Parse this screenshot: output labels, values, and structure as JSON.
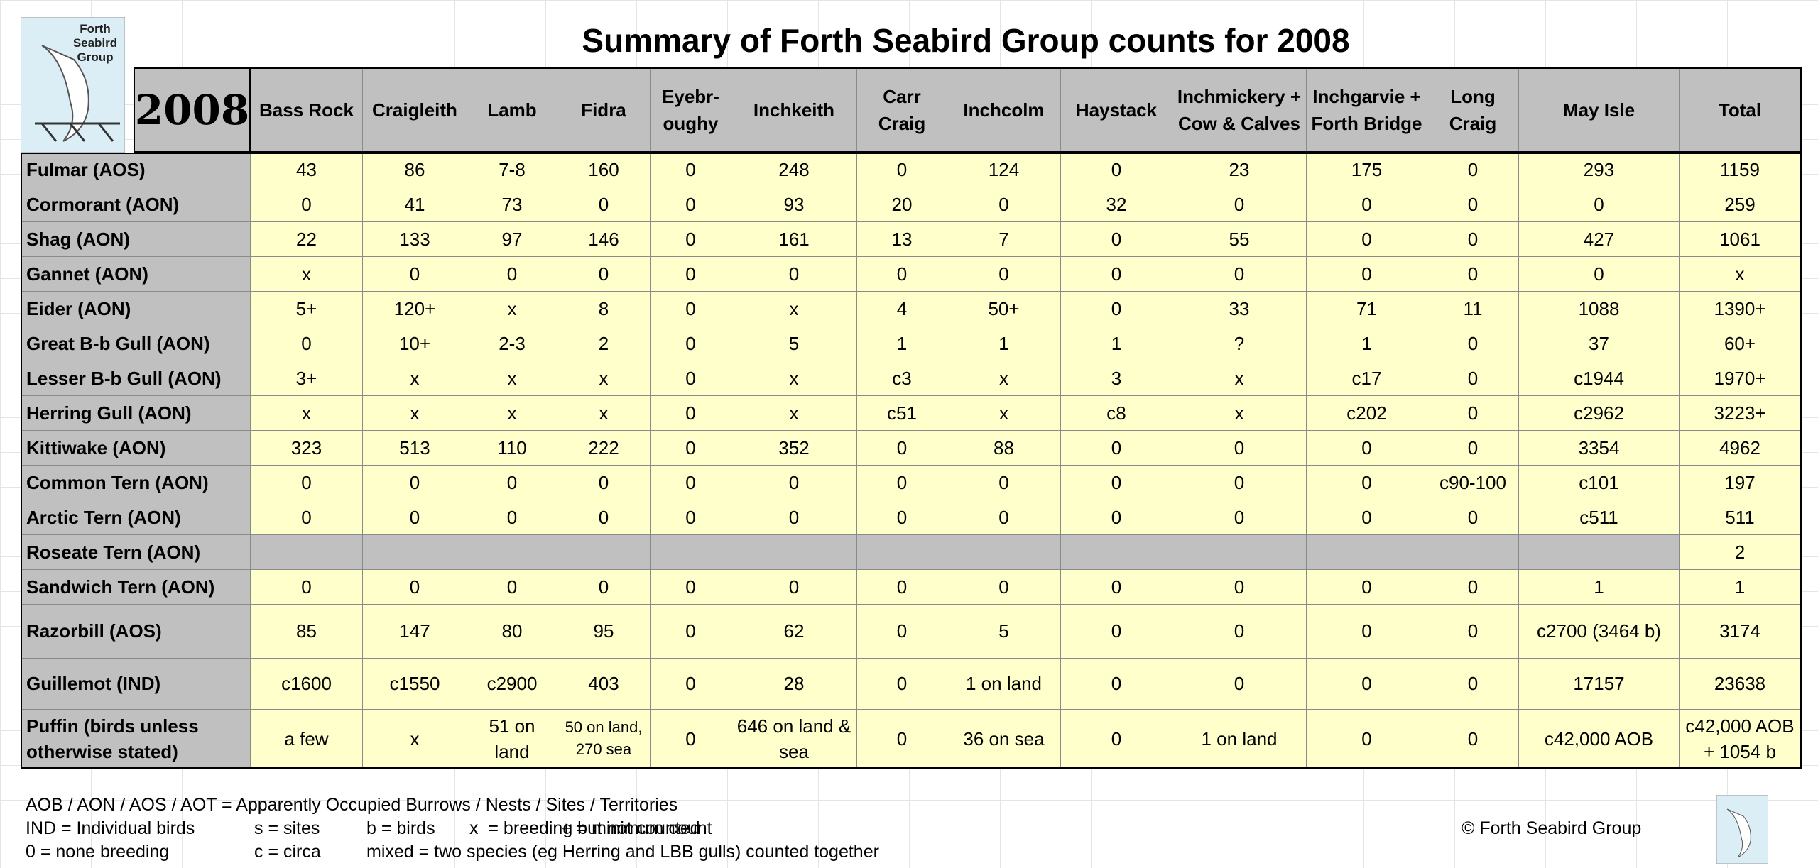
{
  "title": "Summary of Forth Seabird Group counts for 2008",
  "logo": {
    "lines": [
      "Forth",
      "Seabird",
      "Group"
    ]
  },
  "table": {
    "year": "2008",
    "columns": [
      "Bass Rock",
      "Craigleith",
      "Lamb",
      "Fidra",
      "Eyebr-oughy",
      "Inchkeith",
      "Carr Craig",
      "Inchcolm",
      "Haystack",
      "Inchmickery + Cow & Calves",
      "Inchgarvie + Forth Bridge",
      "Long Craig",
      "May Isle",
      "Total"
    ],
    "rows": [
      {
        "label": "Fulmar (AOS)",
        "cells": [
          "43",
          "86",
          "7-8",
          "160",
          "0",
          "248",
          "0",
          "124",
          "0",
          "23",
          "175",
          "0",
          "293",
          "1159"
        ]
      },
      {
        "label": "Cormorant (AON)",
        "cells": [
          "0",
          "41",
          "73",
          "0",
          "0",
          "93",
          "20",
          "0",
          "32",
          "0",
          "0",
          "0",
          "0",
          "259"
        ]
      },
      {
        "label": "Shag (AON)",
        "cells": [
          "22",
          "133",
          "97",
          "146",
          "0",
          "161",
          "13",
          "7",
          "0",
          "55",
          "0",
          "0",
          "427",
          "1061"
        ]
      },
      {
        "label": "Gannet (AON)",
        "cells": [
          "x",
          "0",
          "0",
          "0",
          "0",
          "0",
          "0",
          "0",
          "0",
          "0",
          "0",
          "0",
          "0",
          "x"
        ]
      },
      {
        "label": "Eider (AON)",
        "cells": [
          "5+",
          "120+",
          "x",
          "8",
          "0",
          "x",
          "4",
          "50+",
          "0",
          "33",
          "71",
          "11",
          "1088",
          "1390+"
        ]
      },
      {
        "label": "Great B-b Gull (AON)",
        "cells": [
          "0",
          "10+",
          "2-3",
          "2",
          "0",
          "5",
          "1",
          "1",
          "1",
          "?",
          "1",
          "0",
          "37",
          "60+"
        ]
      },
      {
        "label": "Lesser B-b Gull (AON)",
        "cells": [
          "3+",
          "x",
          "x",
          "x",
          "0",
          "x",
          "c3",
          "x",
          "3",
          "x",
          "c17",
          "0",
          "c1944",
          "1970+"
        ]
      },
      {
        "label": "Herring Gull (AON)",
        "cells": [
          "x",
          "x",
          "x",
          "x",
          "0",
          "x",
          "c51",
          "x",
          "c8",
          "x",
          "c202",
          "0",
          "c2962",
          "3223+"
        ]
      },
      {
        "label": "Kittiwake (AON)",
        "cells": [
          "323",
          "513",
          "110",
          "222",
          "0",
          "352",
          "0",
          "88",
          "0",
          "0",
          "0",
          "0",
          "3354",
          "4962"
        ]
      },
      {
        "label": "Common Tern (AON)",
        "cells": [
          "0",
          "0",
          "0",
          "0",
          "0",
          "0",
          "0",
          "0",
          "0",
          "0",
          "0",
          "c90-100",
          "c101",
          "197"
        ]
      },
      {
        "label": "Arctic Tern (AON)",
        "cells": [
          "0",
          "0",
          "0",
          "0",
          "0",
          "0",
          "0",
          "0",
          "0",
          "0",
          "0",
          "0",
          "c511",
          "511"
        ]
      },
      {
        "label": "Roseate Tern (AON)",
        "cells": [
          null,
          null,
          null,
          null,
          null,
          null,
          null,
          null,
          null,
          null,
          null,
          null,
          null,
          "2"
        ]
      },
      {
        "label": "Sandwich Tern (AON)",
        "cells": [
          "0",
          "0",
          "0",
          "0",
          "0",
          "0",
          "0",
          "0",
          "0",
          "0",
          "0",
          "0",
          "1",
          "1"
        ]
      },
      {
        "label": "Razorbill (AOS)",
        "cells": [
          "85",
          "147",
          "80",
          "95",
          "0",
          "62",
          "0",
          "5",
          "0",
          "0",
          "0",
          "0",
          "c2700 (3464 b)",
          "3174"
        ]
      },
      {
        "label": "Guillemot (IND)",
        "cells": [
          "c1600",
          "c1550",
          "c2900",
          "403",
          "0",
          "28",
          "0",
          "1 on land",
          "0",
          "0",
          "0",
          "0",
          "17157",
          "23638"
        ]
      },
      {
        "label": "Puffin (birds unless otherwise stated)",
        "cells": [
          "a few",
          "x",
          "51 on land",
          "50 on land, 270 sea",
          "0",
          "646 on land & sea",
          "0",
          "36 on sea",
          "0",
          "1 on land",
          "0",
          "0",
          "c42,000 AOB",
          "c42,000 AOB  +  1054 b"
        ]
      }
    ]
  },
  "legend": [
    [
      "AOB / AON / AOS / AOT = Apparently Occupied Burrows / Nests / Sites / Territories"
    ],
    [
      "IND = Individual birds",
      "s = sites",
      "b = birds",
      "x  = breeding but not counted",
      "+ = minimum count"
    ],
    [
      "0 = none breeding",
      "c = circa",
      "mixed = two species (eg Herring and LBB gulls) counted together"
    ]
  ],
  "copyright": "© Forth Seabird Group"
}
